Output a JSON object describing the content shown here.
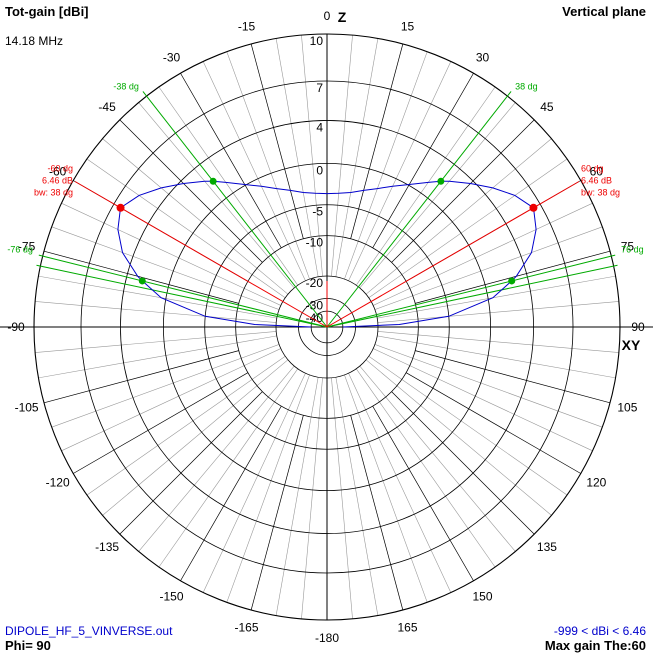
{
  "header": {
    "title": "Tot-gain [dBi]",
    "frequency": "14.18 MHz",
    "plane": "Vertical plane"
  },
  "footer": {
    "file": "DIPOLE_HF_5_VINVERSE.out",
    "phi": "Phi= 90",
    "range": "-999 < dBi < 6.46",
    "max_gain": "Max gain The:60"
  },
  "axes": {
    "top_label": "Z",
    "right_label": "XY"
  },
  "colors": {
    "pattern": "#0000cc",
    "max_marker": "#ee0000",
    "beamwidth_marker": "#00aa00",
    "grid_major": "#000000",
    "grid_minor": "#999999"
  },
  "chart_data": {
    "type": "polar",
    "angle_unit": "deg",
    "angle_labels": [
      "0",
      "15",
      "30",
      "45",
      "60",
      "75",
      "90",
      "105",
      "120",
      "135",
      "150",
      "165",
      "-180",
      "-165",
      "-150",
      "-135",
      "-120",
      "-105",
      "-90",
      "-75",
      "-60",
      "-45",
      "-30",
      "-15"
    ],
    "radial_ticks": [
      "10",
      "7",
      "4",
      "0",
      "-5",
      "-10",
      "-20",
      "-30",
      "-40"
    ],
    "radial_tick_values": [
      10,
      7,
      4,
      0,
      -5,
      -10,
      -20,
      -30,
      -40
    ],
    "max_gain_dbi": 6.46,
    "max_gain_theta": 60,
    "beamwidth_deg": 38,
    "series": [
      {
        "theta": [
          0,
          5,
          10,
          15,
          20,
          25,
          30,
          35,
          38,
          40,
          45,
          50,
          55,
          60,
          65,
          70,
          75,
          76,
          80,
          85,
          88,
          90
        ],
        "gain_dbi": [
          -3.5,
          -3.4,
          -3.1,
          -2.5,
          -1.8,
          -0.9,
          0.1,
          1.3,
          2.1,
          2.6,
          3.7,
          4.8,
          5.8,
          6.46,
          5.9,
          4.9,
          3.1,
          2.6,
          0.5,
          -5.0,
          -14.0,
          -40.0
        ]
      }
    ],
    "markers": {
      "max": [
        {
          "label": "60 dg",
          "gain_label": "6.46 dB",
          "bw_label": "bw: 38 dg"
        },
        {
          "label": "-60 dg",
          "gain_label": "6.46 dB",
          "bw_label": "bw: 38 dg"
        }
      ],
      "beamwidth": [
        {
          "label": "38 dg"
        },
        {
          "label": "76 dg"
        },
        {
          "label": "-38 dg"
        },
        {
          "label": "-76 dg"
        }
      ]
    }
  }
}
